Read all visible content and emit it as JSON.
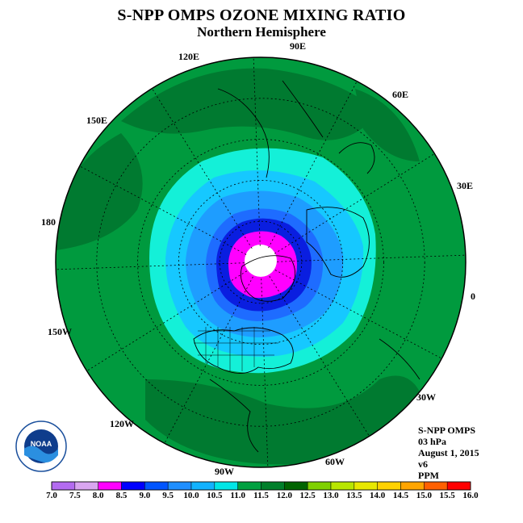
{
  "title": "S-NPP OMPS OZONE MIXING RATIO",
  "subtitle": "Northern Hemisphere",
  "longitude_labels": {
    "e90": "90E",
    "e60": "60E",
    "e30": "30E",
    "e0": "0",
    "w30": "30W",
    "w60": "60W",
    "w90": "90W",
    "w120": "120W",
    "w150": "150W",
    "e180": "180",
    "e150": "150E",
    "e120": "120E"
  },
  "info": {
    "instrument": "S-NPP OMPS",
    "level": "03 hPa",
    "date": "August 1, 2015",
    "version": "v6",
    "units": "PPM"
  },
  "logo": {
    "text": "NOAA",
    "icon": "noaa-logo-icon"
  },
  "colorbar": {
    "ticks": [
      "7.0",
      "7.5",
      "8.0",
      "8.5",
      "9.0",
      "9.5",
      "10.0",
      "10.5",
      "11.0",
      "11.5",
      "12.0",
      "12.5",
      "13.0",
      "13.5",
      "14.0",
      "14.5",
      "15.0",
      "15.5",
      "16.0"
    ],
    "colors": [
      "#b36bf0",
      "#d9a6f0",
      "#ff00ff",
      "#0000ff",
      "#0055ff",
      "#1f8fff",
      "#12b2ff",
      "#00e6e6",
      "#00a040",
      "#007f2a",
      "#006400",
      "#7fd000",
      "#b8e600",
      "#e8e800",
      "#ffd200",
      "#ffa500",
      "#ff6000",
      "#ff0000",
      "#8b5a3c"
    ]
  },
  "map_colors": {
    "ocean_outer": "#009a3e",
    "dark_green": "#007a30",
    "cyan": "#14f0d8",
    "light_blue": "#16c8ff",
    "mid_blue": "#1e9dff",
    "blue": "#1e6cff",
    "deep_blue": "#0a1ee0",
    "magenta": "#ff00ff",
    "pole": "#ffffff"
  }
}
